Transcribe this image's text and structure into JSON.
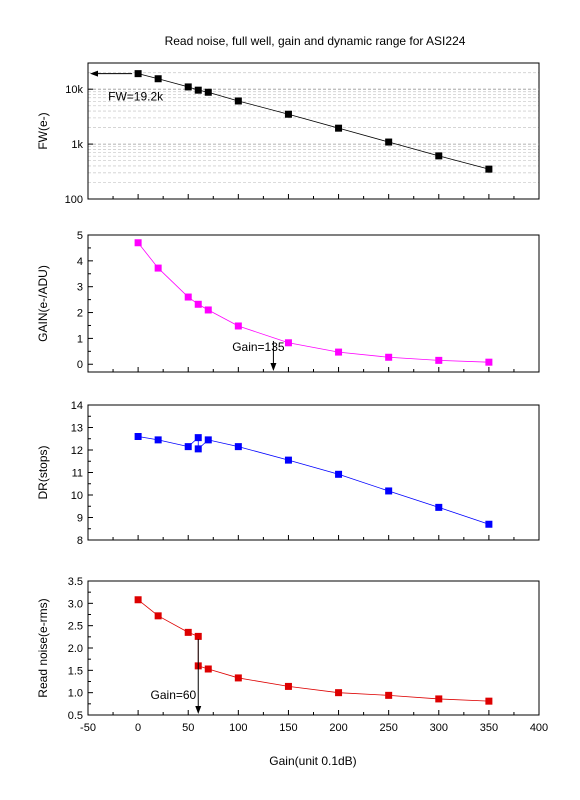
{
  "chart_data": {
    "title": "Read noise, full well, gain and dynamic range for ASI224",
    "xlabel": "Gain(unit 0.1dB)",
    "xlim": [
      -50,
      400
    ],
    "xticks": [
      -50,
      0,
      50,
      100,
      150,
      200,
      250,
      300,
      350,
      400
    ],
    "panels": [
      {
        "id": "fw",
        "type": "line",
        "scale": "log",
        "ylabel": "FW(e-)",
        "ylim": [
          100,
          30000
        ],
        "yticks": [
          {
            "value": 100,
            "label": "100"
          },
          {
            "value": 1000,
            "label": "1k"
          },
          {
            "value": 10000,
            "label": "10k"
          }
        ],
        "grid": "minor-dashed",
        "color": "#000000",
        "x": [
          0,
          20,
          50,
          60,
          70,
          100,
          150,
          200,
          250,
          300,
          350
        ],
        "y": [
          19200,
          15500,
          11000,
          9600,
          8800,
          6100,
          3500,
          1950,
          1090,
          610,
          350
        ],
        "annotation": {
          "text": "FW=19.2k",
          "x": 0,
          "y": 19200,
          "arrow": "left"
        }
      },
      {
        "id": "gain",
        "type": "line",
        "scale": "linear",
        "ylabel": "GAIN(e-/ADU)",
        "ylim": [
          -0.3,
          5
        ],
        "yticks": [
          {
            "value": 0,
            "label": "0"
          },
          {
            "value": 1,
            "label": "1"
          },
          {
            "value": 2,
            "label": "2"
          },
          {
            "value": 3,
            "label": "3"
          },
          {
            "value": 4,
            "label": "4"
          },
          {
            "value": 5,
            "label": "5"
          }
        ],
        "color": "#ff00ff",
        "x": [
          0,
          20,
          50,
          60,
          70,
          100,
          150,
          200,
          250,
          300,
          350
        ],
        "y": [
          4.7,
          3.72,
          2.6,
          2.32,
          2.1,
          1.48,
          0.83,
          0.47,
          0.27,
          0.15,
          0.08
        ],
        "annotation": {
          "text": "Gain=135",
          "x": 135,
          "y": 0.9,
          "arrow": "down"
        }
      },
      {
        "id": "dr",
        "type": "line",
        "scale": "linear",
        "ylabel": "DR(stops)",
        "ylim": [
          8,
          14
        ],
        "yticks": [
          {
            "value": 8,
            "label": "8"
          },
          {
            "value": 9,
            "label": "9"
          },
          {
            "value": 10,
            "label": "10"
          },
          {
            "value": 11,
            "label": "11"
          },
          {
            "value": 12,
            "label": "12"
          },
          {
            "value": 13,
            "label": "13"
          },
          {
            "value": 14,
            "label": "14"
          }
        ],
        "color": "#0000ff",
        "x": [
          0,
          20,
          50,
          60,
          60,
          70,
          100,
          150,
          200,
          250,
          300,
          350
        ],
        "y": [
          12.6,
          12.45,
          12.15,
          12.55,
          12.05,
          12.45,
          12.15,
          11.55,
          10.92,
          10.18,
          9.45,
          8.7
        ]
      },
      {
        "id": "rn",
        "type": "line",
        "scale": "linear",
        "ylabel": "Read noise(e-rms)",
        "ylim": [
          0.5,
          3.5
        ],
        "yticks": [
          {
            "value": 0.5,
            "label": "0.5"
          },
          {
            "value": 1.0,
            "label": "1.0"
          },
          {
            "value": 1.5,
            "label": "1.5"
          },
          {
            "value": 2.0,
            "label": "2.0"
          },
          {
            "value": 2.5,
            "label": "2.5"
          },
          {
            "value": 3.0,
            "label": "3.0"
          },
          {
            "value": 3.5,
            "label": "3.5"
          }
        ],
        "color": "#dd0000",
        "x": [
          0,
          20,
          50,
          60,
          60,
          70,
          100,
          150,
          200,
          250,
          300,
          350
        ],
        "y": [
          3.08,
          2.72,
          2.35,
          2.26,
          1.6,
          1.53,
          1.33,
          1.14,
          1.0,
          0.94,
          0.86,
          0.81
        ],
        "annotation": {
          "text": "Gain=60",
          "x": 60,
          "y": 2.2,
          "arrow": "down"
        }
      }
    ]
  }
}
